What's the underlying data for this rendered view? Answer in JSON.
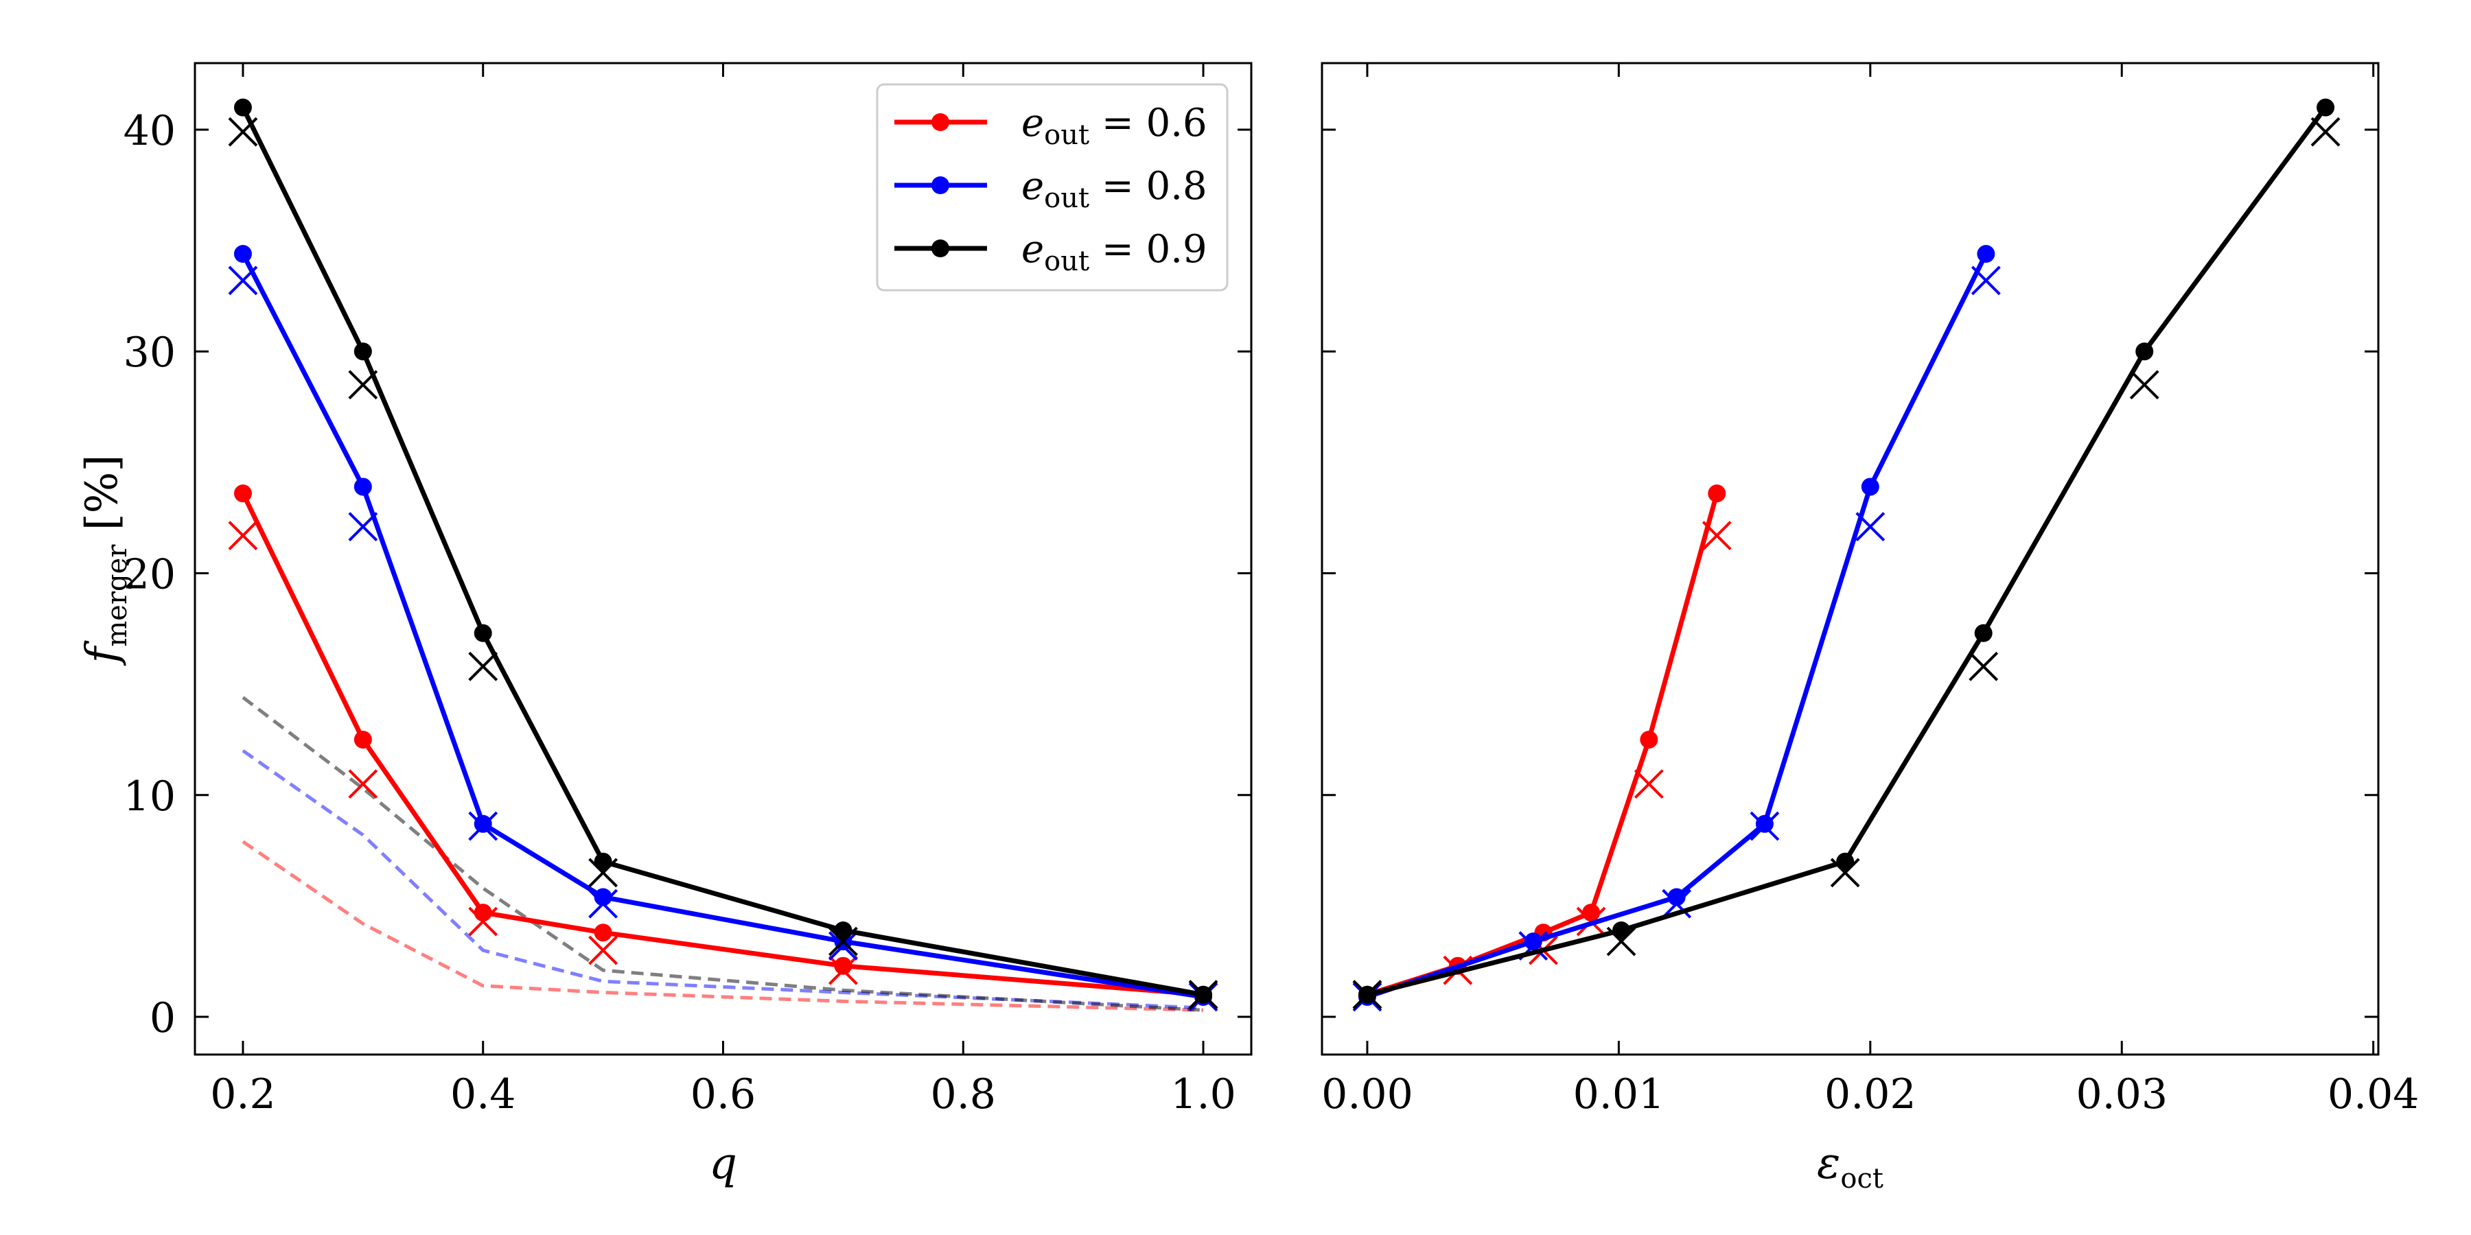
{
  "chart_data": [
    {
      "type": "line",
      "xlabel": "q",
      "ylabel": "f",
      "ylabel_sub": "merger",
      "ylabel_unit": "[%]",
      "xlim": [
        0.16,
        1.04
      ],
      "ylim": [
        -1.7,
        43.0
      ],
      "xticks": [
        0.2,
        0.4,
        0.6,
        0.8,
        1.0
      ],
      "xtick_labels": [
        "0.2",
        "0.4",
        "0.6",
        "0.8",
        "1.0"
      ],
      "yticks": [
        0,
        10,
        20,
        30,
        40
      ],
      "ytick_labels": [
        "0",
        "10",
        "20",
        "30",
        "40"
      ],
      "grid": false,
      "legend_position": "top-right",
      "series": [
        {
          "name": "e_out = 0.6",
          "color": "#ff0000",
          "x": [
            0.2,
            0.3,
            0.4,
            0.5,
            0.7,
            1.0
          ],
          "y": [
            23.6,
            12.5,
            4.7,
            3.8,
            2.3,
            1.0
          ],
          "x_markers": [
            21.7,
            10.5,
            4.3,
            3.0,
            2.1,
            1.0
          ],
          "dashed": [
            7.9,
            4.2,
            1.4,
            1.1,
            0.7,
            0.3
          ]
        },
        {
          "name": "e_out = 0.8",
          "color": "#0000ff",
          "x": [
            0.2,
            0.3,
            0.4,
            0.5,
            0.7,
            1.0
          ],
          "y": [
            34.4,
            23.9,
            8.7,
            5.4,
            3.4,
            0.9
          ],
          "x_markers": [
            33.2,
            22.1,
            8.6,
            5.1,
            3.2,
            0.9
          ],
          "dashed": [
            12.0,
            8.2,
            3.0,
            1.6,
            1.1,
            0.4
          ]
        },
        {
          "name": "e_out = 0.9",
          "color": "#000000",
          "x": [
            0.2,
            0.3,
            0.4,
            0.5,
            0.7,
            1.0
          ],
          "y": [
            41.0,
            30.0,
            17.3,
            7.0,
            3.9,
            1.0
          ],
          "x_markers": [
            39.9,
            28.5,
            15.8,
            6.5,
            3.4,
            1.0
          ],
          "dashed": [
            14.4,
            10.3,
            5.8,
            2.1,
            1.2,
            0.3
          ]
        }
      ]
    },
    {
      "type": "line",
      "xlabel": "ε",
      "xlabel_sub": "oct",
      "xlim": [
        -0.0018,
        0.0402
      ],
      "ylim": [
        -1.7,
        43.0
      ],
      "xticks": [
        0.0,
        0.01,
        0.02,
        0.03,
        0.04
      ],
      "xtick_labels": [
        "0.00",
        "0.01",
        "0.02",
        "0.03",
        "0.04"
      ],
      "yticks": [
        0,
        10,
        20,
        30,
        40
      ],
      "grid": false,
      "series": [
        {
          "name": "e_out = 0.6",
          "color": "#ff0000",
          "x": [
            0.0,
            0.0036,
            0.007,
            0.0089,
            0.0112,
            0.0139
          ],
          "y": [
            1.0,
            2.3,
            3.8,
            4.7,
            12.5,
            23.6
          ],
          "x_markers_x": [
            0.0,
            0.0036,
            0.007,
            0.0089,
            0.0112,
            0.0139
          ],
          "x_markers": [
            1.0,
            2.1,
            3.0,
            4.3,
            10.5,
            21.7
          ]
        },
        {
          "name": "e_out = 0.8",
          "color": "#0000ff",
          "x": [
            0.0,
            0.0066,
            0.0123,
            0.0158,
            0.02,
            0.0246
          ],
          "y": [
            0.9,
            3.4,
            5.4,
            8.7,
            23.9,
            34.4
          ],
          "x_markers_x": [
            0.0,
            0.0066,
            0.0123,
            0.0158,
            0.02,
            0.0246
          ],
          "x_markers": [
            0.9,
            3.2,
            5.1,
            8.6,
            22.1,
            33.2
          ]
        },
        {
          "name": "e_out = 0.9",
          "color": "#000000",
          "x": [
            0.0,
            0.0101,
            0.019,
            0.0245,
            0.0309,
            0.0381
          ],
          "y": [
            1.0,
            3.9,
            7.0,
            17.3,
            30.0,
            41.0
          ],
          "x_markers_x": [
            0.0,
            0.0101,
            0.019,
            0.0245,
            0.0309,
            0.0381
          ],
          "x_markers": [
            1.0,
            3.4,
            6.5,
            15.8,
            28.5,
            39.9
          ]
        }
      ]
    }
  ],
  "legend": {
    "entries": [
      {
        "symbol": "e",
        "sub": "out",
        "value_text": " = 0.6",
        "color": "#ff0000"
      },
      {
        "symbol": "e",
        "sub": "out",
        "value_text": " = 0.8",
        "color": "#0000ff"
      },
      {
        "symbol": "e",
        "sub": "out",
        "value_text": " = 0.9",
        "color": "#000000"
      }
    ]
  }
}
